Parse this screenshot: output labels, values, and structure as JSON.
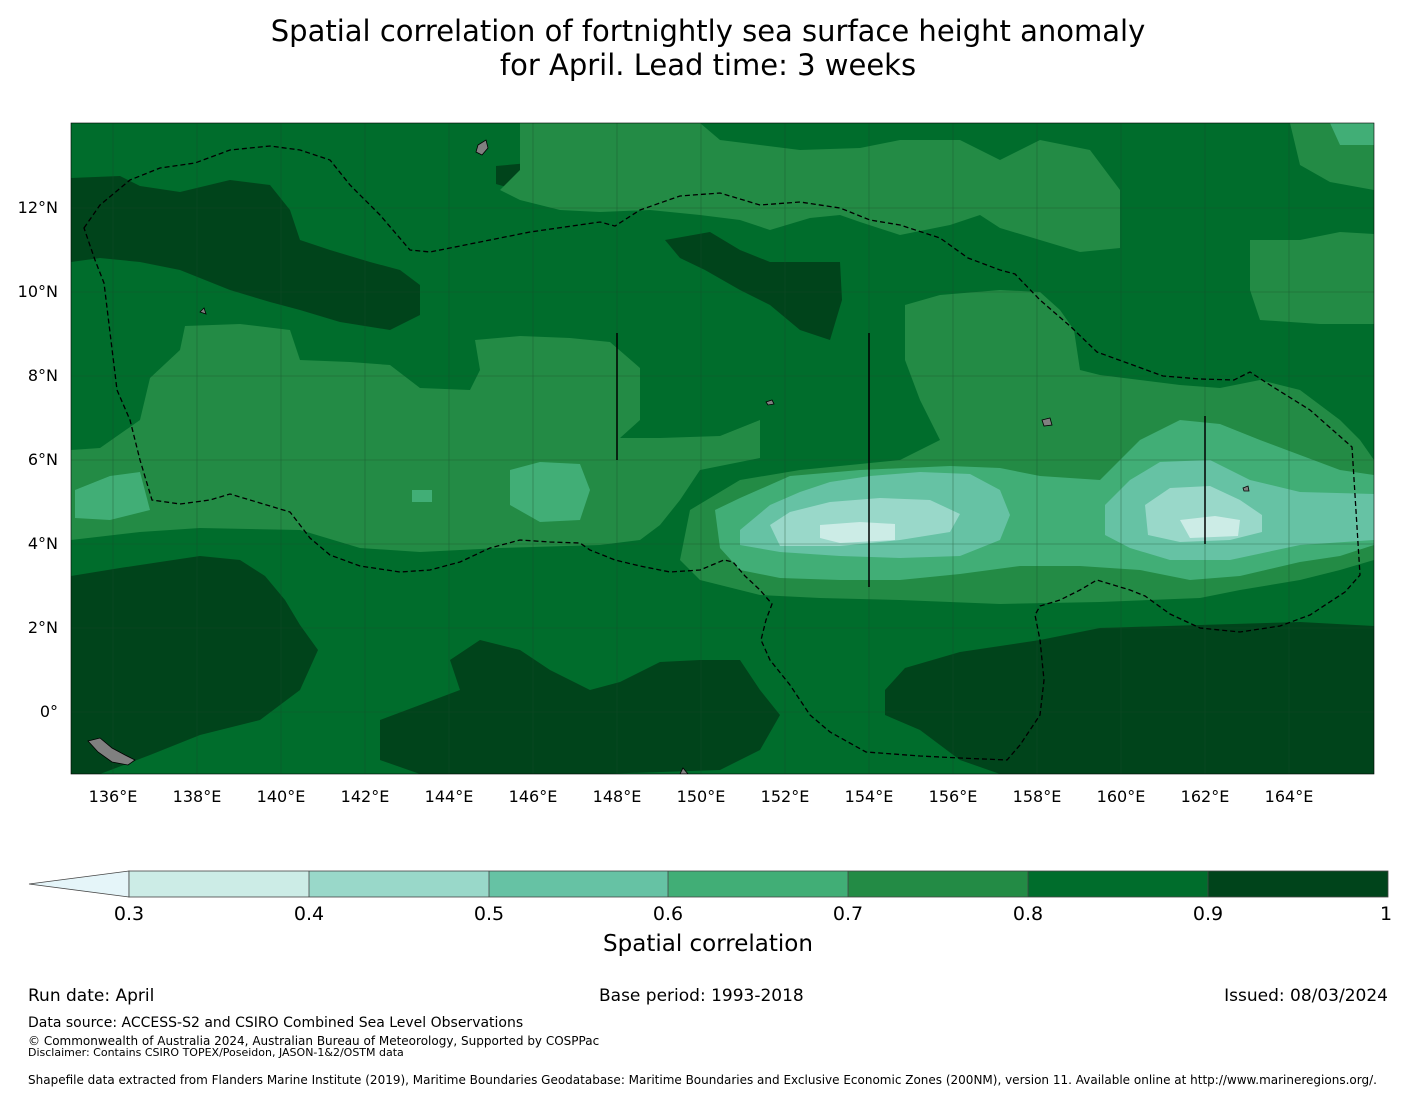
{
  "title": {
    "line1": "Spatial correlation of fortnightly sea surface height anomaly",
    "line2": "for April. Lead time: 3 weeks"
  },
  "map": {
    "lon_range": [
      135,
      166
    ],
    "lat_range": [
      -1.5,
      14
    ],
    "lon_ticks": [
      "136°E",
      "138°E",
      "140°E",
      "142°E",
      "144°E",
      "146°E",
      "148°E",
      "150°E",
      "152°E",
      "154°E",
      "156°E",
      "158°E",
      "160°E",
      "162°E",
      "164°E"
    ],
    "lat_ticks": [
      "12°N",
      "10°N",
      "8°N",
      "6°N",
      "4°N",
      "2°N",
      "0°"
    ],
    "boundary": "dashed maritime boundary (EEZ)",
    "land_color": "#808080"
  },
  "colorbar": {
    "label": "Spatial correlation",
    "extend": "min",
    "below_color": "#e5f5f9",
    "levels": [
      "0.3",
      "0.4",
      "0.5",
      "0.6",
      "0.7",
      "0.8",
      "0.9",
      "1"
    ],
    "colors": [
      "#ccece6",
      "#99d8c9",
      "#66c2a4",
      "#41ae76",
      "#238b45",
      "#006d2c",
      "#00441b"
    ]
  },
  "footer": {
    "run_date": "Run date: April",
    "base_period": "Base period: 1993-2018",
    "issued": "Issued: 08/03/2024",
    "data_source": "Data source: ACCESS-S2 and CSIRO Combined Sea Level Observations",
    "copyright": "© Commonwealth of Australia 2024, Australian Bureau of Meteorology, Supported by COSPPac",
    "disclaimer": "Disclaimer: Contains CSIRO TOPEX/Poseidon, JASON-1&2/OSTM data",
    "shapefile": "Shapefile data extracted from Flanders Marine Institute (2019), Maritime Boundaries Geodatabase: Maritime Boundaries and Exclusive Economic Zones (200NM), version 11. Available online at http://www.marineregions.org/."
  }
}
